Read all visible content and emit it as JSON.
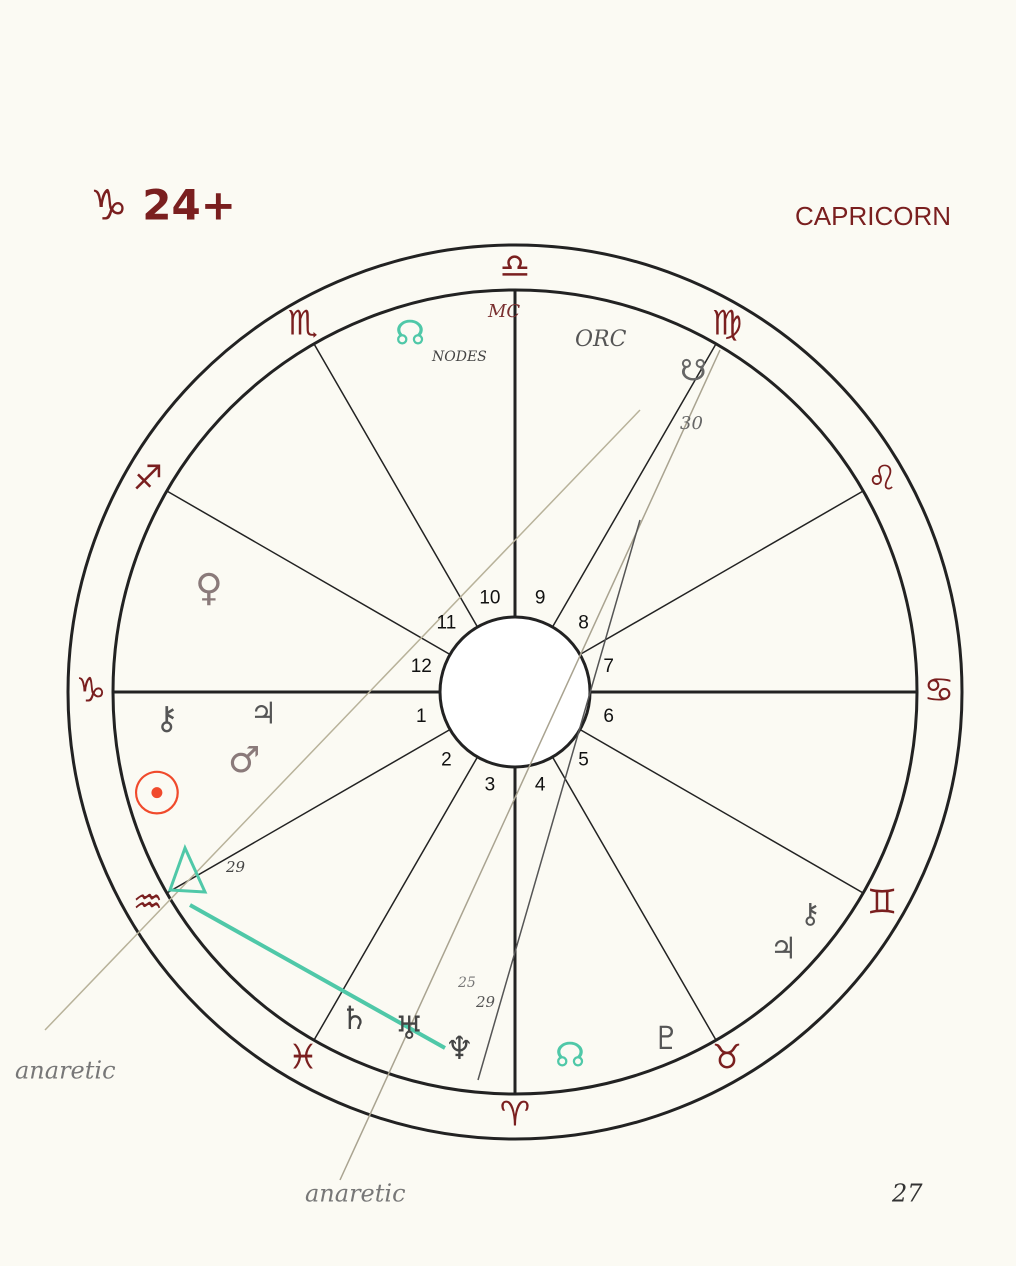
{
  "header": {
    "left_note": "♑ 24+",
    "right_note": "CAPRICORN"
  },
  "signs": [
    "♑",
    "♐",
    "♏",
    "♎",
    "♍",
    "♌",
    "♋",
    "♊",
    "♉",
    "♈",
    "♓",
    "♒"
  ],
  "houses": [
    "1",
    "2",
    "3",
    "4",
    "5",
    "6",
    "7",
    "8",
    "9",
    "10",
    "11",
    "12"
  ],
  "notes": [
    "MC",
    "NODES",
    "ORC",
    "30",
    "29",
    "25",
    "29",
    "anaretic",
    "anaretic",
    "27"
  ],
  "glyphs": [
    "☊",
    "☋",
    "♀",
    "⚷",
    "♃",
    "♂",
    "☉",
    "♄",
    "♅",
    "♆",
    "☊",
    "♇",
    "♃",
    "⚷"
  ]
}
